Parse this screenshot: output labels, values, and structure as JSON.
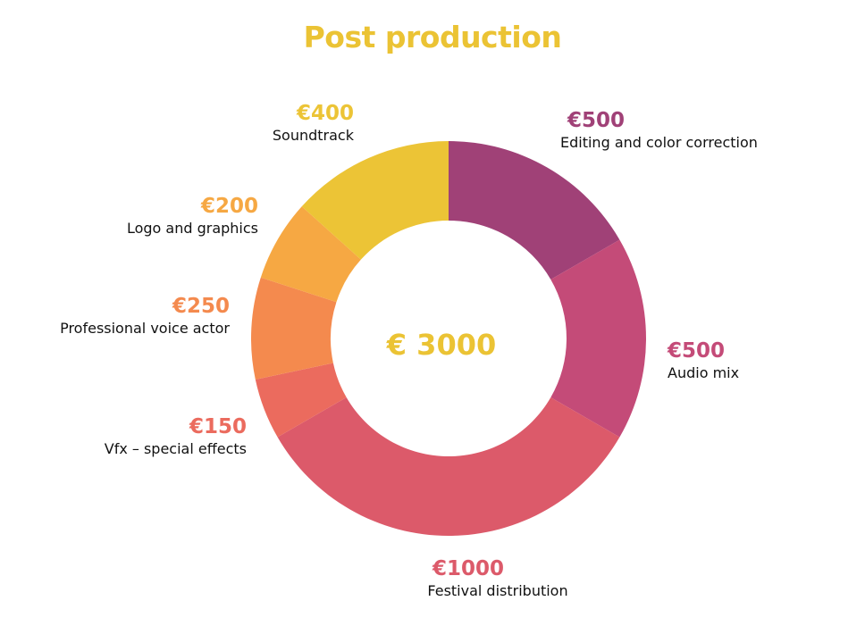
{
  "chart_data": {
    "type": "pie",
    "title": "Post production",
    "center_label": "€ 3000",
    "slices": [
      {
        "name": "Editing and color correction",
        "value": 500,
        "value_label": "€500",
        "color": "#a04177"
      },
      {
        "name": "Audio mix",
        "value": 500,
        "value_label": "€500",
        "color": "#c44b78"
      },
      {
        "name": "Festival distribution",
        "value": 1000,
        "value_label": "€1000",
        "color": "#dc5a6a"
      },
      {
        "name": "Vfx – special effects",
        "value": 150,
        "value_label": "€150",
        "color": "#eb6b5e"
      },
      {
        "name": "Professional voice actor",
        "value": 250,
        "value_label": "€250",
        "color": "#f48a4e"
      },
      {
        "name": "Logo and graphics",
        "value": 200,
        "value_label": "€200",
        "color": "#f6a843"
      },
      {
        "name": "Soundtrack",
        "value": 400,
        "value_label": "€400",
        "color": "#ecc436"
      }
    ]
  }
}
